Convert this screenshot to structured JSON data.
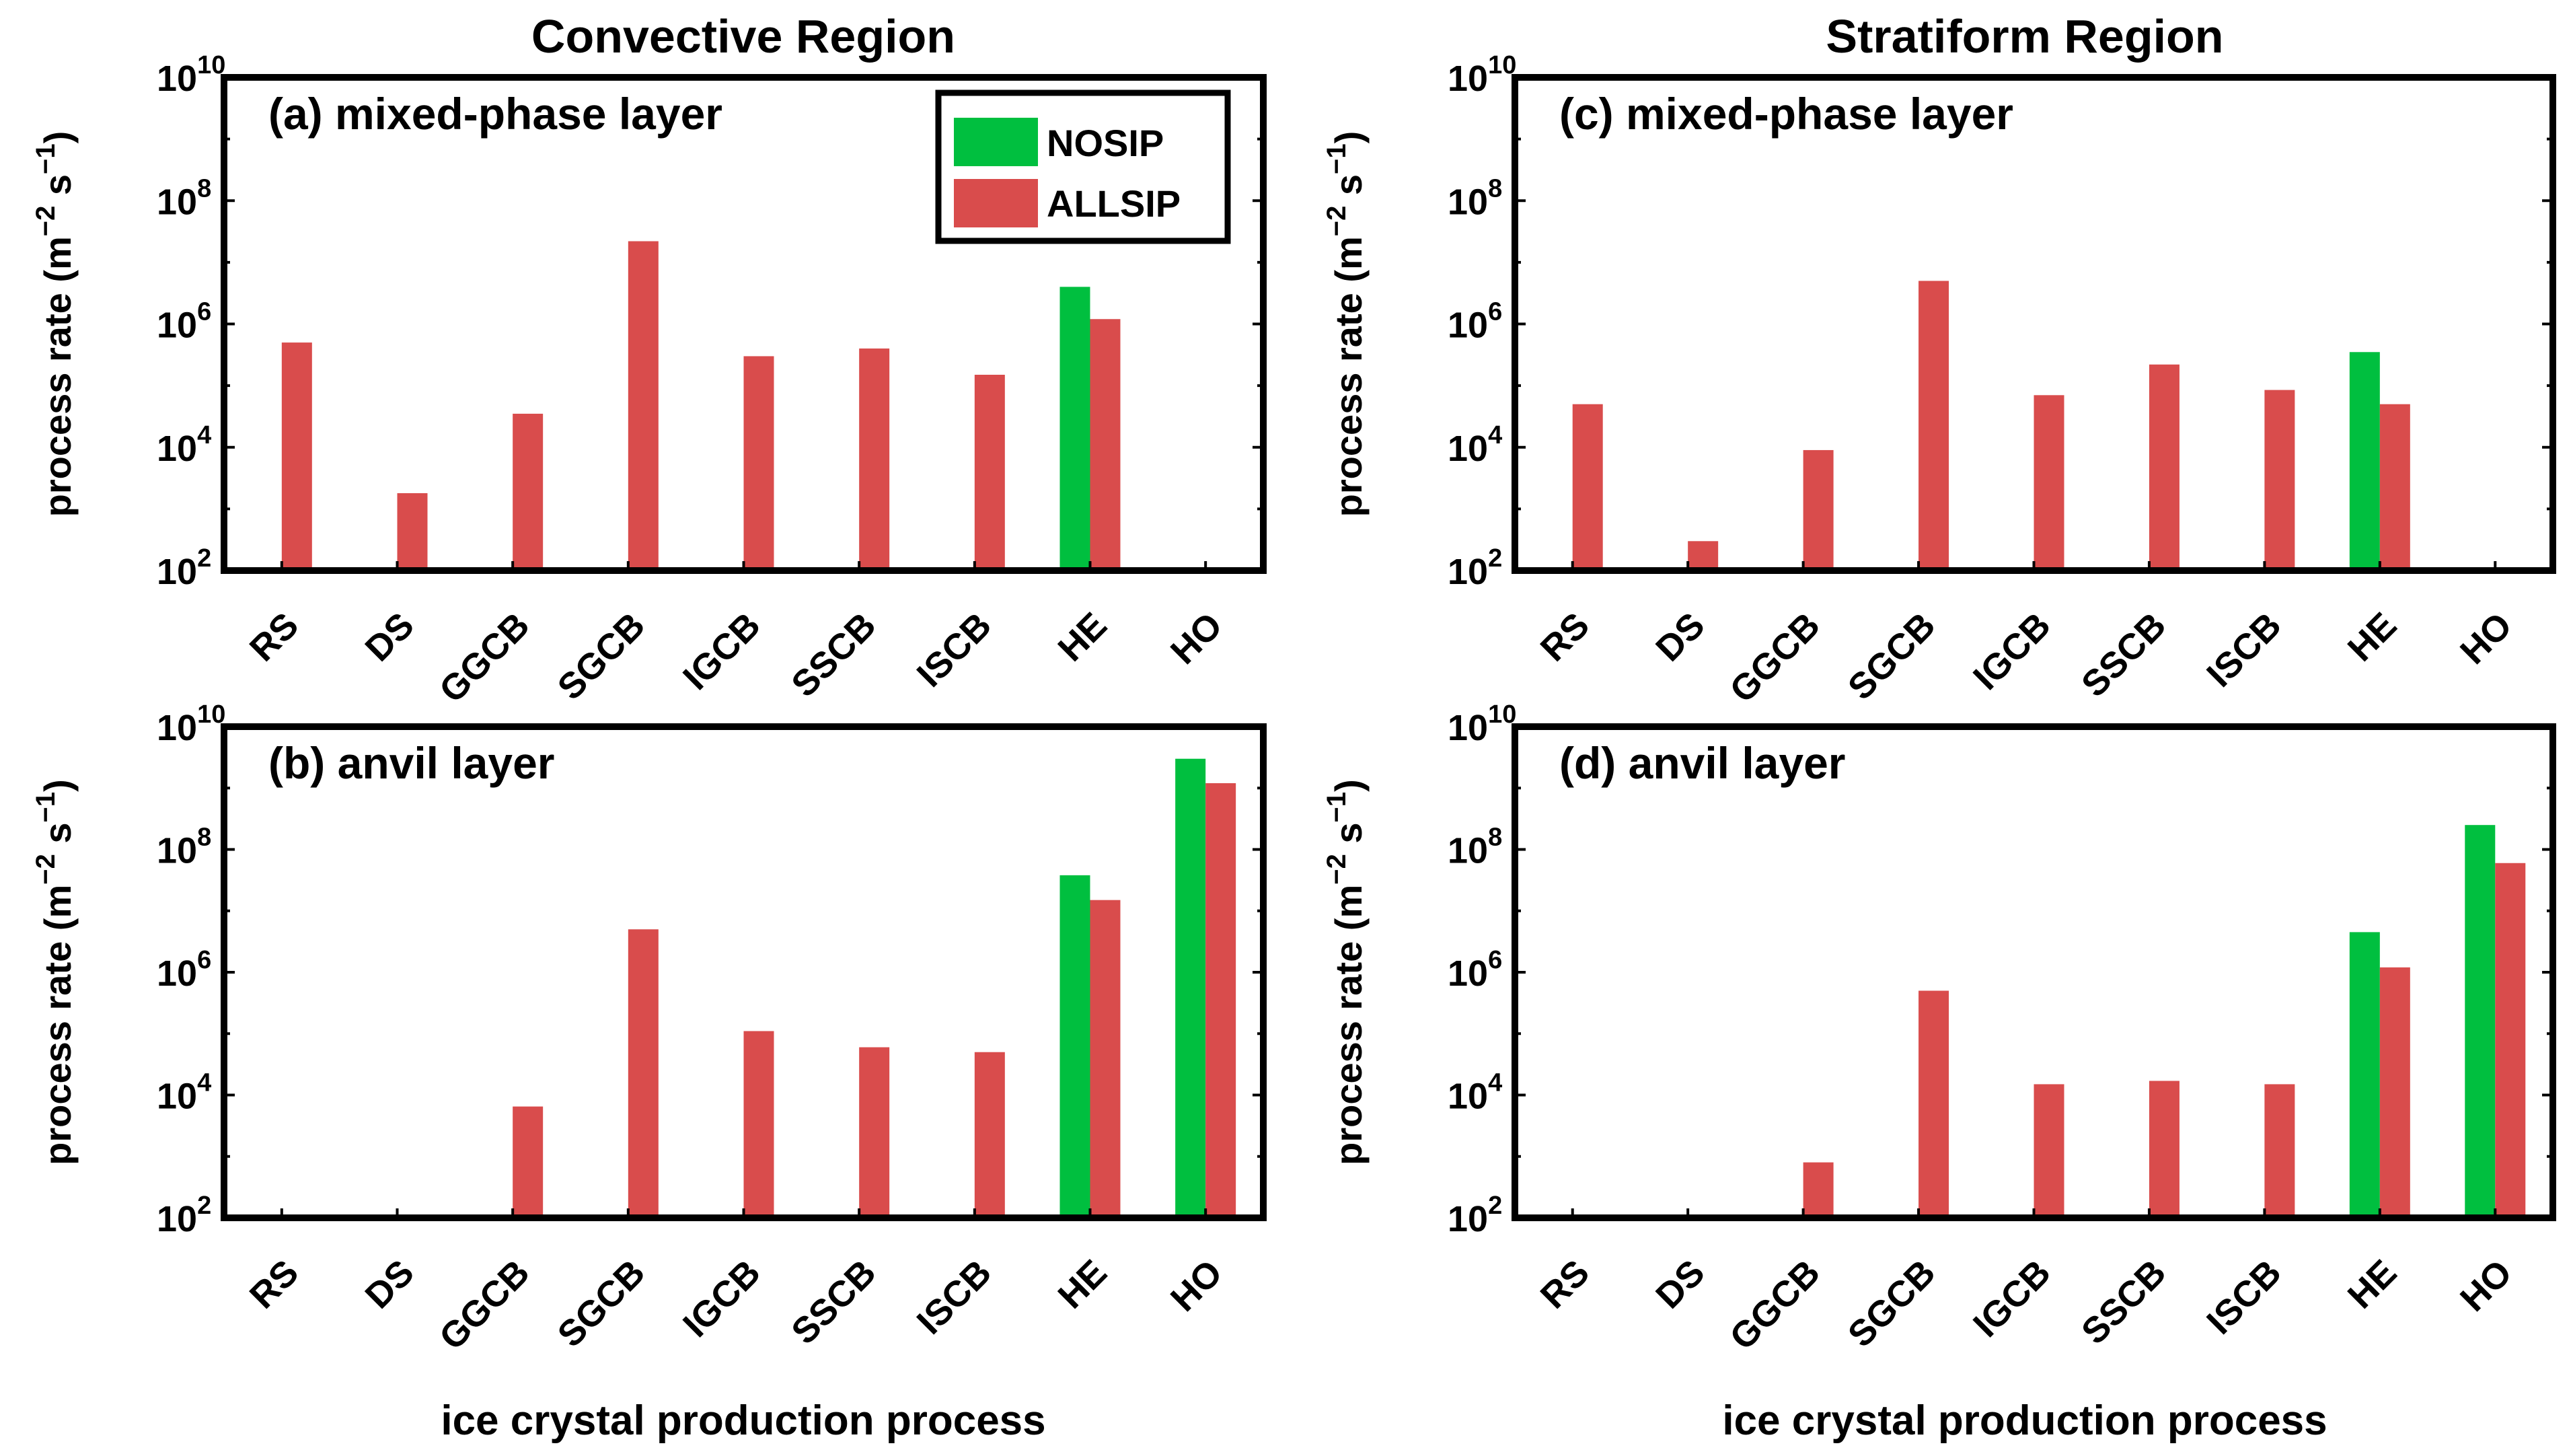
{
  "colors": {
    "nosip": "#00BF3F",
    "allsip": "#D94C4C",
    "frame": "#000000"
  },
  "column_titles": [
    "Convective Region",
    "Stratiform Region"
  ],
  "legend": {
    "nosip": "NOSIP",
    "allsip": "ALLSIP"
  },
  "y_axis": {
    "label": "process rate (m",
    "label_exp1": "−2",
    "label_mid": " s",
    "label_exp2": "−1",
    "label_end": ")",
    "base": "10",
    "exponents": [
      "2",
      "4",
      "6",
      "8",
      "10"
    ]
  },
  "x_axis_label": "ice crystal production process",
  "chart_data": [
    {
      "type": "bar",
      "title": "(a) mixed-phase layer",
      "region": "Convective Region",
      "yscale": "log",
      "ylim": [
        100,
        10000000000
      ],
      "categories": [
        "RS",
        "DS",
        "GGCB",
        "SGCB",
        "IGCB",
        "SSCB",
        "ISCB",
        "HE",
        "HO"
      ],
      "series": [
        {
          "name": "NOSIP",
          "values": [
            null,
            null,
            null,
            null,
            null,
            null,
            null,
            4000000,
            null
          ]
        },
        {
          "name": "ALLSIP",
          "values": [
            500000,
            1800,
            35000,
            22000000,
            300000,
            400000,
            150000,
            1200000,
            null
          ]
        }
      ]
    },
    {
      "type": "bar",
      "title": "(b) anvil layer",
      "region": "Convective Region",
      "yscale": "log",
      "ylim": [
        100,
        10000000000
      ],
      "categories": [
        "RS",
        "DS",
        "GGCB",
        "SGCB",
        "IGCB",
        "SSCB",
        "ISCB",
        "HE",
        "HO"
      ],
      "series": [
        {
          "name": "NOSIP",
          "values": [
            null,
            null,
            null,
            null,
            null,
            null,
            null,
            38000000,
            3000000000
          ]
        },
        {
          "name": "ALLSIP",
          "values": [
            null,
            null,
            6500,
            5000000,
            110000,
            60000,
            50000,
            15000000,
            1200000000
          ]
        }
      ]
    },
    {
      "type": "bar",
      "title": "(c) mixed-phase layer",
      "region": "Stratiform Region",
      "yscale": "log",
      "ylim": [
        100,
        10000000000
      ],
      "categories": [
        "RS",
        "DS",
        "GGCB",
        "SGCB",
        "IGCB",
        "SSCB",
        "ISCB",
        "HE",
        "HO"
      ],
      "series": [
        {
          "name": "NOSIP",
          "values": [
            null,
            null,
            null,
            null,
            null,
            null,
            null,
            350000,
            null
          ]
        },
        {
          "name": "ALLSIP",
          "values": [
            50000,
            300,
            9000,
            5000000,
            70000,
            220000,
            85000,
            50000,
            null
          ]
        }
      ]
    },
    {
      "type": "bar",
      "title": "(d) anvil layer",
      "region": "Stratiform Region",
      "yscale": "log",
      "ylim": [
        100,
        10000000000
      ],
      "categories": [
        "RS",
        "DS",
        "GGCB",
        "SGCB",
        "IGCB",
        "SSCB",
        "ISCB",
        "HE",
        "HO"
      ],
      "series": [
        {
          "name": "NOSIP",
          "values": [
            null,
            null,
            null,
            null,
            null,
            null,
            null,
            4500000,
            250000000
          ]
        },
        {
          "name": "ALLSIP",
          "values": [
            null,
            null,
            800,
            500000,
            15000,
            17000,
            15000,
            1200000,
            60000000
          ]
        }
      ]
    }
  ]
}
